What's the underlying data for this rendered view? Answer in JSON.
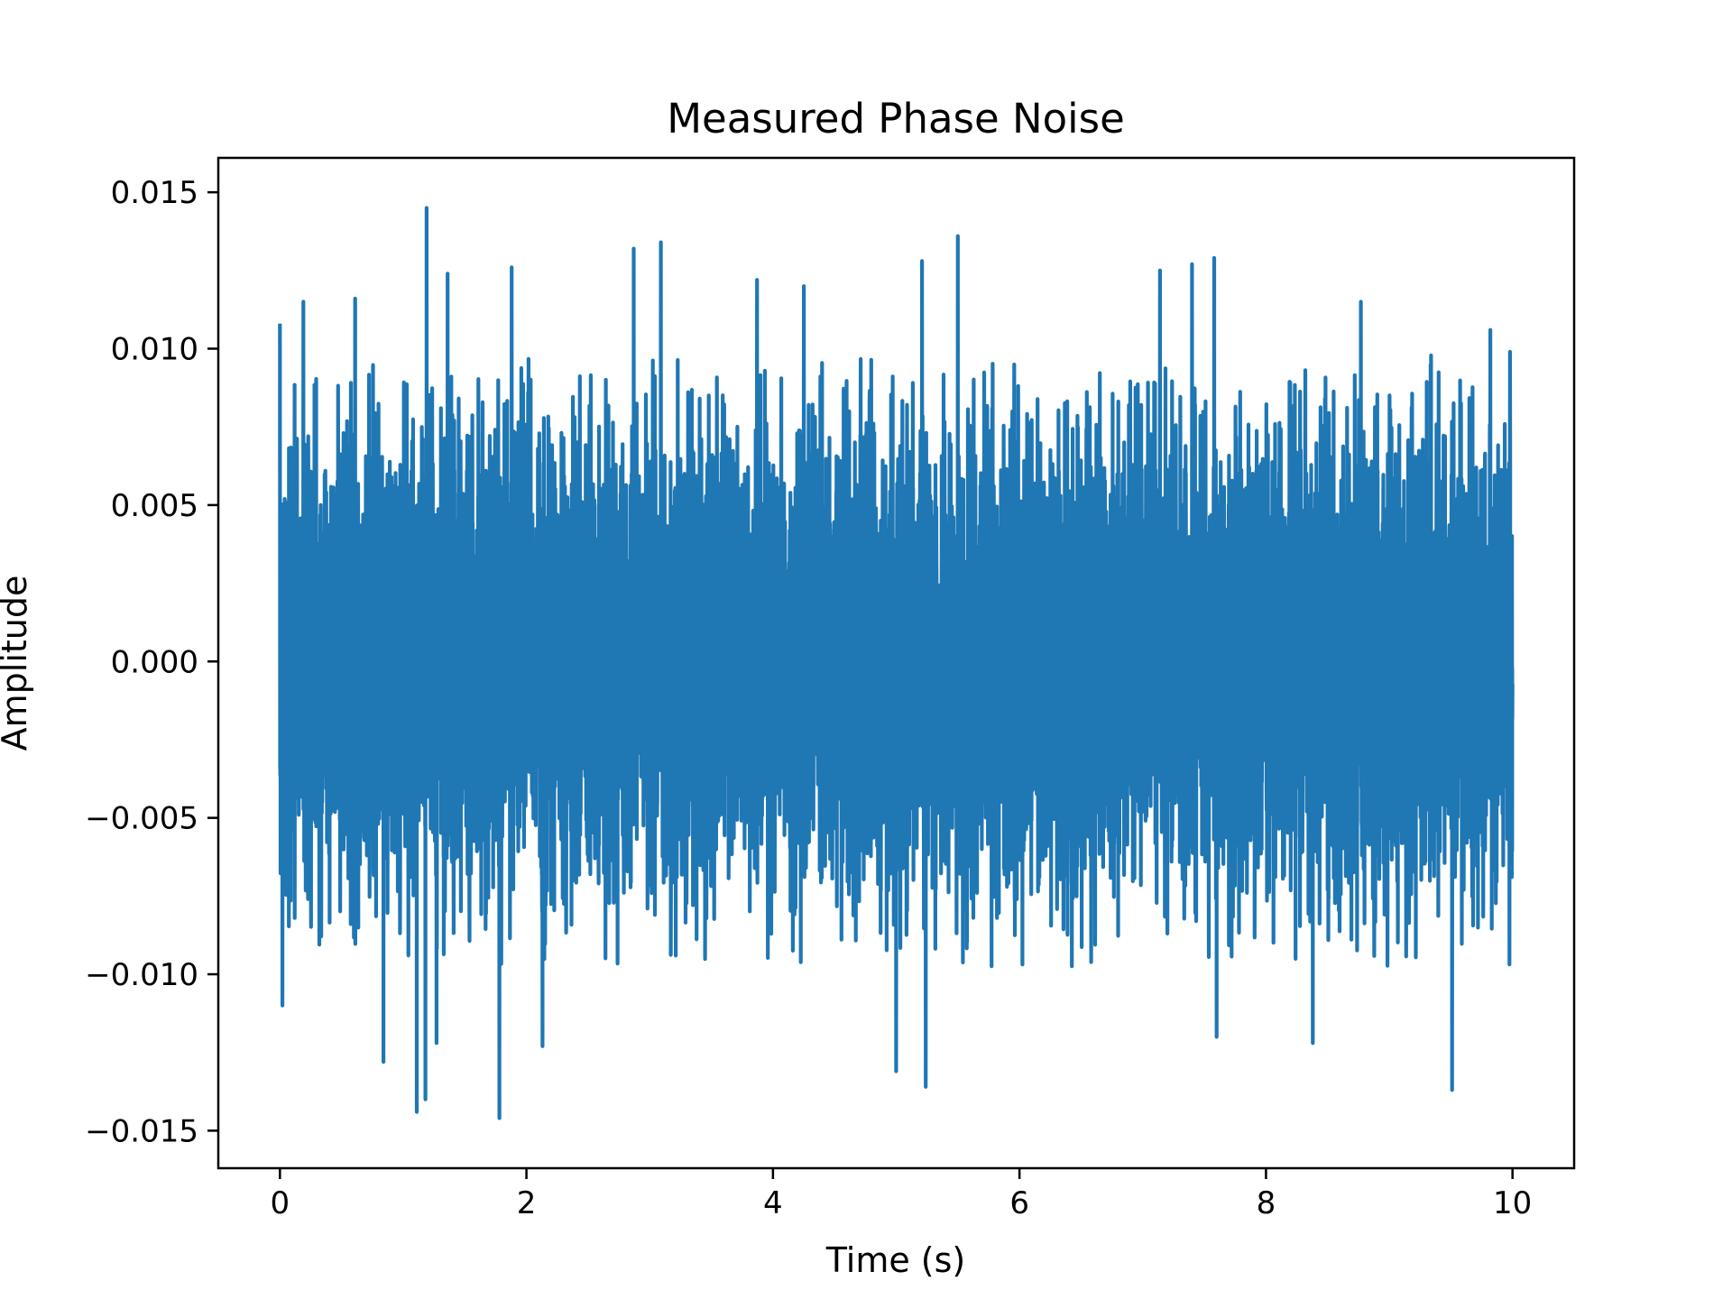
{
  "chart_data": {
    "type": "line",
    "title": "Measured Phase Noise",
    "xlabel": "Time (s)",
    "ylabel": "Amplitude",
    "xlim": [
      -0.5,
      10.5
    ],
    "ylim": [
      -0.0162,
      0.0161
    ],
    "x_ticks": [
      0,
      2,
      4,
      6,
      8,
      10
    ],
    "x_tick_labels": [
      "0",
      "2",
      "4",
      "6",
      "8",
      "10"
    ],
    "y_ticks": [
      -0.015,
      -0.01,
      -0.005,
      0.0,
      0.005,
      0.01,
      0.015
    ],
    "y_tick_labels": [
      "−0.015",
      "−0.010",
      "−0.005",
      "0.000",
      "0.005",
      "0.010",
      "0.015"
    ],
    "grid": false,
    "series": [
      {
        "color": "#1f77b4",
        "x_range": [
          0,
          10
        ],
        "mean": 0.0,
        "std": 0.0035,
        "n_points": 10000,
        "peaks": [
          {
            "x": 0.0,
            "y": 0.0108
          },
          {
            "x": 0.02,
            "y": -0.011
          },
          {
            "x": 0.19,
            "y": 0.0115
          },
          {
            "x": 0.61,
            "y": 0.0116
          },
          {
            "x": 0.84,
            "y": -0.0128
          },
          {
            "x": 1.11,
            "y": -0.0144
          },
          {
            "x": 1.19,
            "y": 0.0145
          },
          {
            "x": 1.18,
            "y": -0.014
          },
          {
            "x": 1.36,
            "y": 0.0124
          },
          {
            "x": 1.27,
            "y": -0.0122
          },
          {
            "x": 1.78,
            "y": -0.0146
          },
          {
            "x": 1.88,
            "y": 0.0126
          },
          {
            "x": 2.13,
            "y": -0.0123
          },
          {
            "x": 2.87,
            "y": 0.0132
          },
          {
            "x": 3.09,
            "y": 0.0134
          },
          {
            "x": 3.87,
            "y": 0.0122
          },
          {
            "x": 4.25,
            "y": 0.012
          },
          {
            "x": 5.0,
            "y": -0.0131
          },
          {
            "x": 5.21,
            "y": 0.0128
          },
          {
            "x": 5.24,
            "y": -0.0136
          },
          {
            "x": 5.5,
            "y": 0.0136
          },
          {
            "x": 7.14,
            "y": 0.0125
          },
          {
            "x": 7.4,
            "y": 0.0127
          },
          {
            "x": 7.58,
            "y": 0.0129
          },
          {
            "x": 7.6,
            "y": -0.012
          },
          {
            "x": 8.38,
            "y": -0.0122
          },
          {
            "x": 8.77,
            "y": 0.0115
          },
          {
            "x": 9.51,
            "y": -0.0137
          },
          {
            "x": 9.82,
            "y": 0.0106
          },
          {
            "x": 9.98,
            "y": 0.0099
          }
        ]
      }
    ]
  }
}
